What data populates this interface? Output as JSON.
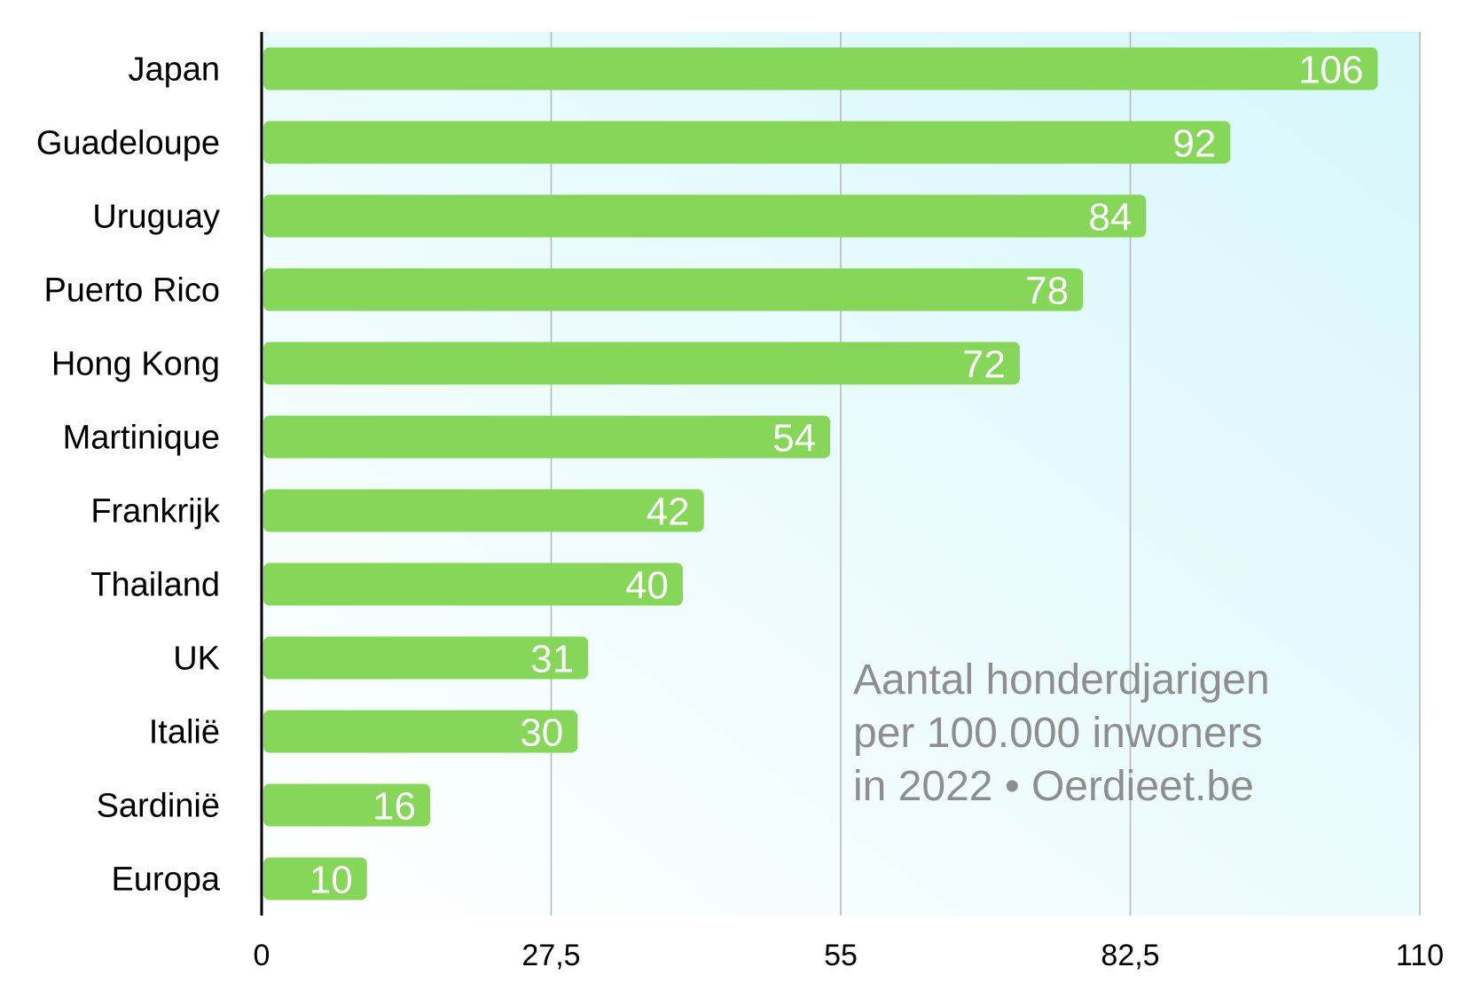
{
  "chart_data": {
    "type": "bar",
    "orientation": "horizontal",
    "categories": [
      "Japan",
      "Guadeloupe",
      "Uruguay",
      "Puerto Rico",
      "Hong Kong",
      "Martinique",
      "Frankrijk",
      "Thailand",
      "UK",
      "Italië",
      "Sardinië",
      "Europa"
    ],
    "values": [
      106,
      92,
      84,
      78,
      72,
      54,
      42,
      40,
      31,
      30,
      16,
      10
    ],
    "value_labels": [
      "106",
      "92",
      "84",
      "78",
      "72",
      "54",
      "42",
      "40",
      "31",
      "30",
      "16",
      "10"
    ],
    "xlim": [
      0,
      110
    ],
    "x_ticks": [
      0,
      27.5,
      55,
      82.5,
      110
    ],
    "x_tick_labels": [
      "0",
      "27,5",
      "55",
      "82,5",
      "110"
    ],
    "grid": true,
    "annotation": [
      "Aantal honderdjarigen",
      "per 100.000 inwoners",
      "in 2022 • Oerdieet.be"
    ],
    "colors": {
      "bar": "#86d65a",
      "data_label": "#ffffff",
      "annotation": "#8e8e8e",
      "grid": "#b5b5b5",
      "axis": "#000000",
      "background_start": "#ffffff",
      "background_end": "#d6f7fb"
    }
  }
}
